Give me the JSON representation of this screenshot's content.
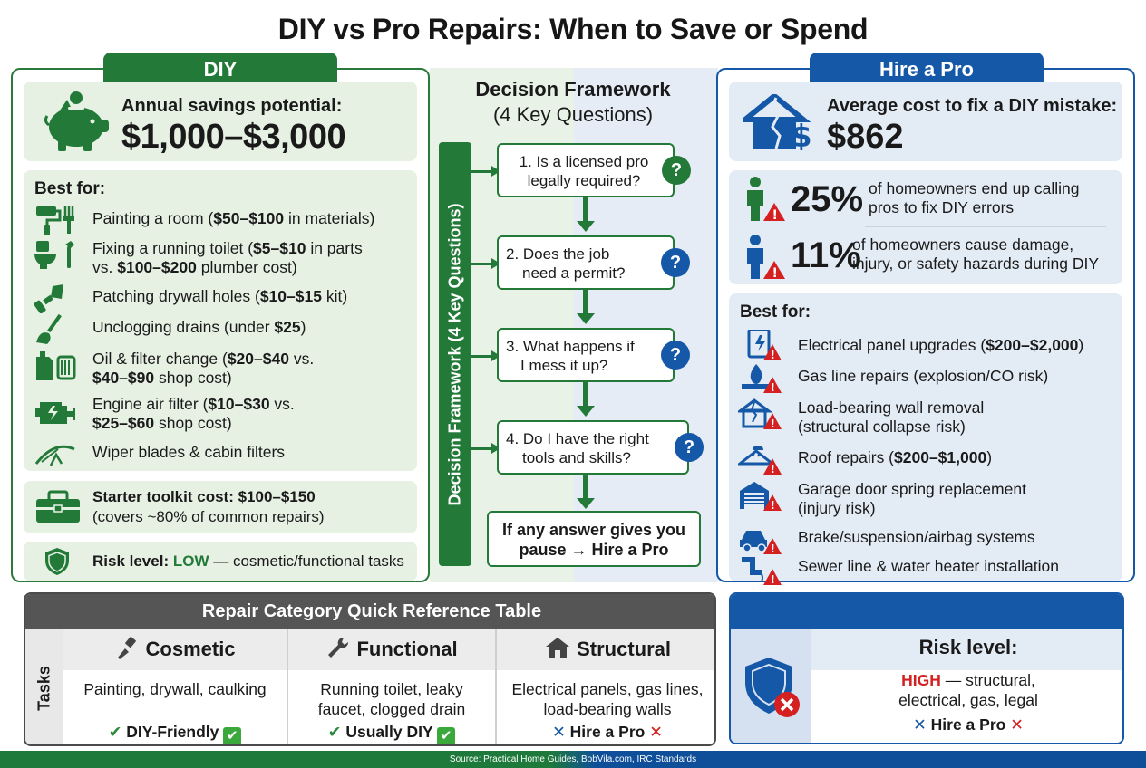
{
  "title": "DIY vs Pro Repairs: When to Save or Spend",
  "diy": {
    "tab": "DIY",
    "savings_label": "Annual savings potential:",
    "savings_value": "$1,000–$3,000",
    "best_for": "Best for:",
    "items": [
      {
        "icon": "paint-roller-icon",
        "pre": "Painting a room (",
        "bold": "$50–$100",
        "post": " in materials)",
        "line2_pre": "",
        "line2_bold": "",
        "line2_post": ""
      },
      {
        "icon": "toilet-wrench-icon",
        "pre": "Fixing a running toilet (",
        "bold": "$5–$10",
        "post": " in parts",
        "line2_pre": "vs. ",
        "line2_bold": "$100–$200",
        "line2_post": " plumber cost)"
      },
      {
        "icon": "putty-knife-icon",
        "pre": "Patching drywall holes (",
        "bold": "$10–$15",
        "post": " kit)",
        "line2_pre": "",
        "line2_bold": "",
        "line2_post": ""
      },
      {
        "icon": "plunger-icon",
        "pre": "Unclogging drains (under ",
        "bold": "$25",
        "post": ")",
        "line2_pre": "",
        "line2_bold": "",
        "line2_post": ""
      },
      {
        "icon": "oil-filter-icon",
        "pre": "Oil & filter change (",
        "bold": "$20–$40",
        "post": " vs.",
        "line2_pre": "",
        "line2_bold": "$40–$90",
        "line2_post": " shop cost)"
      },
      {
        "icon": "engine-icon",
        "pre": "Engine air filter (",
        "bold": "$10–$30",
        "post": " vs.",
        "line2_pre": "",
        "line2_bold": "$25–$60",
        "line2_post": " shop cost)"
      },
      {
        "icon": "wiper-icon",
        "pre": "Wiper blades & cabin filters",
        "bold": "",
        "post": "",
        "line2_pre": "",
        "line2_bold": "",
        "line2_post": ""
      }
    ],
    "toolkit_line1": "Starter toolkit cost: $100–$150",
    "toolkit_line2": "(covers ~80% of common repairs)",
    "risk_label": "Risk level:",
    "risk_value": "LOW",
    "risk_desc": " — cosmetic/functional tasks"
  },
  "framework": {
    "title": "Decision Framework",
    "subtitle": "(4 Key Questions)",
    "vertical": "Decision Framework (4 Key Questions)",
    "questions": [
      {
        "l1": "1. Is a licensed pro",
        "l2": "legally required?"
      },
      {
        "l1": "2. Does the job",
        "l2": "need a permit?"
      },
      {
        "l1": "3. What happens if",
        "l2": "I mess it up?"
      },
      {
        "l1": "4. Do I have the right",
        "l2": "tools and skills?"
      }
    ],
    "qmark": "?",
    "final_l1": "If any answer gives you",
    "final_l2": "pause → Hire a Pro"
  },
  "pro": {
    "tab": "Hire a Pro",
    "cost_label": "Average cost to fix a DIY mistake:",
    "cost_value": "$862",
    "stat1_pct": "25%",
    "stat1_l1": "of homeowners end up calling",
    "stat1_l2": "pros to fix DIY errors",
    "stat2_pct": "11%",
    "stat2_l1": "of homeowners cause damage,",
    "stat2_l2": "injury, or safety hazards during DIY",
    "best_for": "Best for:",
    "items": [
      {
        "icon": "electrical-panel-icon",
        "pre": "Electrical panel upgrades (",
        "bold": "$200–$2,000",
        "post": ")",
        "line2": ""
      },
      {
        "icon": "gas-flame-icon",
        "pre": "Gas line repairs (explosion/CO risk)",
        "bold": "",
        "post": "",
        "line2": ""
      },
      {
        "icon": "cracked-house-icon",
        "pre": "Load-bearing wall removal",
        "bold": "",
        "post": "",
        "line2": "(structural collapse risk)"
      },
      {
        "icon": "roof-icon",
        "pre": "Roof repairs (",
        "bold": "$200–$1,000",
        "post": ")",
        "line2": ""
      },
      {
        "icon": "garage-door-icon",
        "pre": "Garage door spring replacement",
        "bold": "",
        "post": "",
        "line2": "(injury risk)"
      },
      {
        "icon": "car-icon",
        "pre": "Brake/suspension/airbag systems",
        "bold": "",
        "post": "",
        "line2": ""
      },
      {
        "icon": "pipe-icon",
        "pre": "Sewer line & water heater installation",
        "bold": "",
        "post": "",
        "line2": ""
      }
    ]
  },
  "table": {
    "title": "Repair Category Quick Reference Table",
    "row_label": "Tasks",
    "columns": [
      {
        "head": "Cosmetic",
        "icon": "paintbrush-icon",
        "l1": "Painting, drywall, caulking",
        "l2": "",
        "verdict": "DIY-Friendly",
        "type": "diy"
      },
      {
        "head": "Functional",
        "icon": "wrench-icon",
        "l1": "Running toilet, leaky",
        "l2": "faucet, clogged drain",
        "verdict": "Usually DIY",
        "type": "diy"
      },
      {
        "head": "Structural",
        "icon": "house-icon",
        "l1": "Electrical panels, gas lines,",
        "l2": "load-bearing walls",
        "verdict": "Hire a Pro",
        "type": "pro"
      }
    ]
  },
  "pro_risk": {
    "label": "Risk level:",
    "value": "HIGH",
    "desc1": " — structural,",
    "desc2": "electrical, gas, legal",
    "verdict": "Hire a Pro"
  },
  "source": "Source: Practical Home Guides, BobVila.com, IRC Standards",
  "colors": {
    "diy_green": "#237a38",
    "pro_blue": "#1558a8",
    "warning_red": "#d42020"
  }
}
